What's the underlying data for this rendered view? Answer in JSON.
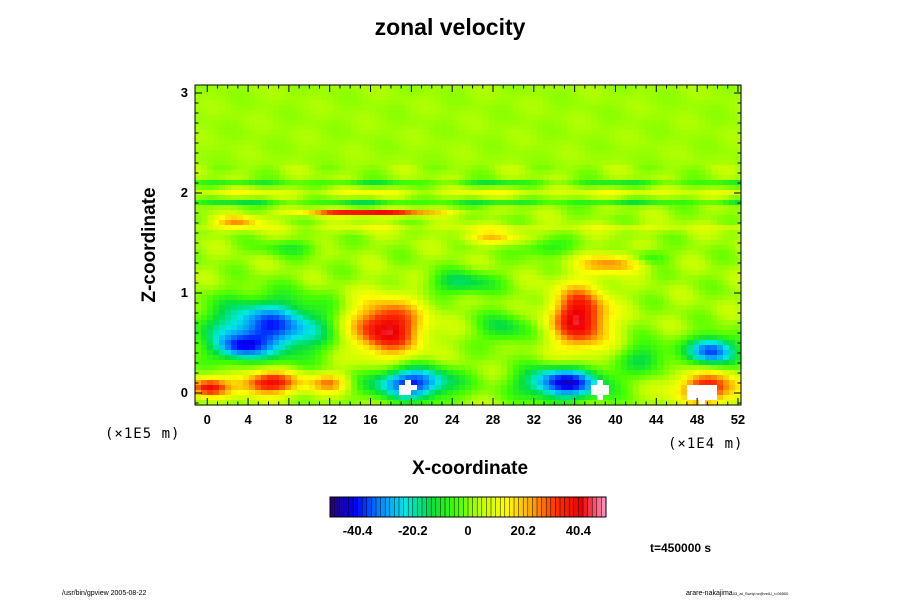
{
  "chart_data": {
    "type": "heatmap",
    "title": "zonal velocity",
    "xlabel": "X-coordinate",
    "ylabel": "Z-coordinate",
    "x_scale_label": "(×1E4 m)",
    "y_scale_label": "(×1E5 m)",
    "x_ticks": [
      "0",
      "4",
      "8",
      "12",
      "16",
      "20",
      "24",
      "28",
      "32",
      "36",
      "40",
      "44",
      "48",
      "52"
    ],
    "y_ticks": [
      "0",
      "1",
      "2",
      "3"
    ],
    "xlim": [
      -1.2,
      52.3
    ],
    "ylim": [
      -0.12,
      3.08
    ],
    "colorbar": {
      "ticks": [
        "-40.4",
        "-20.2",
        "0",
        "20.2",
        "40.4"
      ],
      "tick_values": [
        -40.4,
        -20.2,
        0,
        20.2,
        40.4
      ],
      "range": [
        -50.5,
        50.5
      ],
      "colors": [
        "#2a0070",
        "#0000ff",
        "#0088ff",
        "#00e8e8",
        "#00dd44",
        "#44ff00",
        "#c0ff00",
        "#ffff00",
        "#ffaa00",
        "#ff3300",
        "#ee0000",
        "#ff99cc"
      ]
    },
    "background_value": 2,
    "features": [
      {
        "x": 6,
        "z": 0.65,
        "rx": 7,
        "rz": 0.35,
        "value": -40
      },
      {
        "x": 3,
        "z": 0.45,
        "rx": 3,
        "rz": 0.15,
        "value": -25
      },
      {
        "x": 0,
        "z": 0.05,
        "rx": 2.5,
        "rz": 0.12,
        "value": 35
      },
      {
        "x": 6,
        "z": 0.1,
        "rx": 4,
        "rz": 0.15,
        "value": 38
      },
      {
        "x": 12,
        "z": 0.1,
        "rx": 2.5,
        "rz": 0.12,
        "value": 22
      },
      {
        "x": 17.5,
        "z": 0.65,
        "rx": 4.5,
        "rz": 0.35,
        "value": 42
      },
      {
        "x": 20,
        "z": 0.1,
        "rx": 5,
        "rz": 0.2,
        "value": -42
      },
      {
        "x": 19.5,
        "z": 0.05,
        "rx": 1,
        "rz": 0.06,
        "value": 0.0,
        "blank": true
      },
      {
        "x": 29,
        "z": 0.65,
        "rx": 3,
        "rz": 0.2,
        "value": -15
      },
      {
        "x": 25,
        "z": 1.1,
        "rx": 4,
        "rz": 0.15,
        "value": -18
      },
      {
        "x": 36.5,
        "z": 0.75,
        "rx": 3.5,
        "rz": 0.4,
        "value": 42
      },
      {
        "x": 35,
        "z": 0.1,
        "rx": 5,
        "rz": 0.2,
        "value": -45
      },
      {
        "x": 38.5,
        "z": 0.03,
        "rx": 1.2,
        "rz": 0.08,
        "value": 0.0,
        "blank": true
      },
      {
        "x": 43,
        "z": 0.35,
        "rx": 3,
        "rz": 0.2,
        "value": -15
      },
      {
        "x": 49.5,
        "z": 0.42,
        "rx": 3,
        "rz": 0.18,
        "value": -40
      },
      {
        "x": 49,
        "z": 0.05,
        "rx": 4,
        "rz": 0.2,
        "value": 35
      },
      {
        "x": 48.5,
        "z": 0.0,
        "rx": 1.5,
        "rz": 0.1,
        "value": 0.0,
        "blank": true
      },
      {
        "x": 40,
        "z": 1.3,
        "rx": 4,
        "rz": 0.12,
        "value": 25
      },
      {
        "x": 43,
        "z": 1.35,
        "rx": 2.5,
        "rz": 0.1,
        "value": -15
      },
      {
        "x": 33,
        "z": 1.45,
        "rx": 3,
        "rz": 0.12,
        "value": -12
      },
      {
        "x": 16,
        "z": 1.8,
        "rx": 8,
        "rz": 0.04,
        "value": 40
      },
      {
        "x": 3,
        "z": 1.72,
        "rx": 3,
        "rz": 0.06,
        "value": 22
      },
      {
        "x": 28,
        "z": 1.55,
        "rx": 4,
        "rz": 0.08,
        "value": 16
      },
      {
        "x": 8,
        "z": 1.45,
        "rx": 4,
        "rz": 0.1,
        "value": -10
      }
    ],
    "bands": [
      {
        "z": 1.9,
        "half_width": 0.03,
        "value": -14
      },
      {
        "z": 2.1,
        "half_width": 0.03,
        "value": -12
      },
      {
        "z": 2.0,
        "half_width": 0.03,
        "value": 10
      },
      {
        "z": 1.65,
        "half_width": 0.04,
        "value": 8
      }
    ]
  },
  "time_label": "t=450000 s",
  "footer_left": "/usr/bin/gpview 2005-08-22",
  "footer_right": "arare-nakajima",
  "footer_right_sub": "03_at_Swny.nc@velU_i=06500"
}
